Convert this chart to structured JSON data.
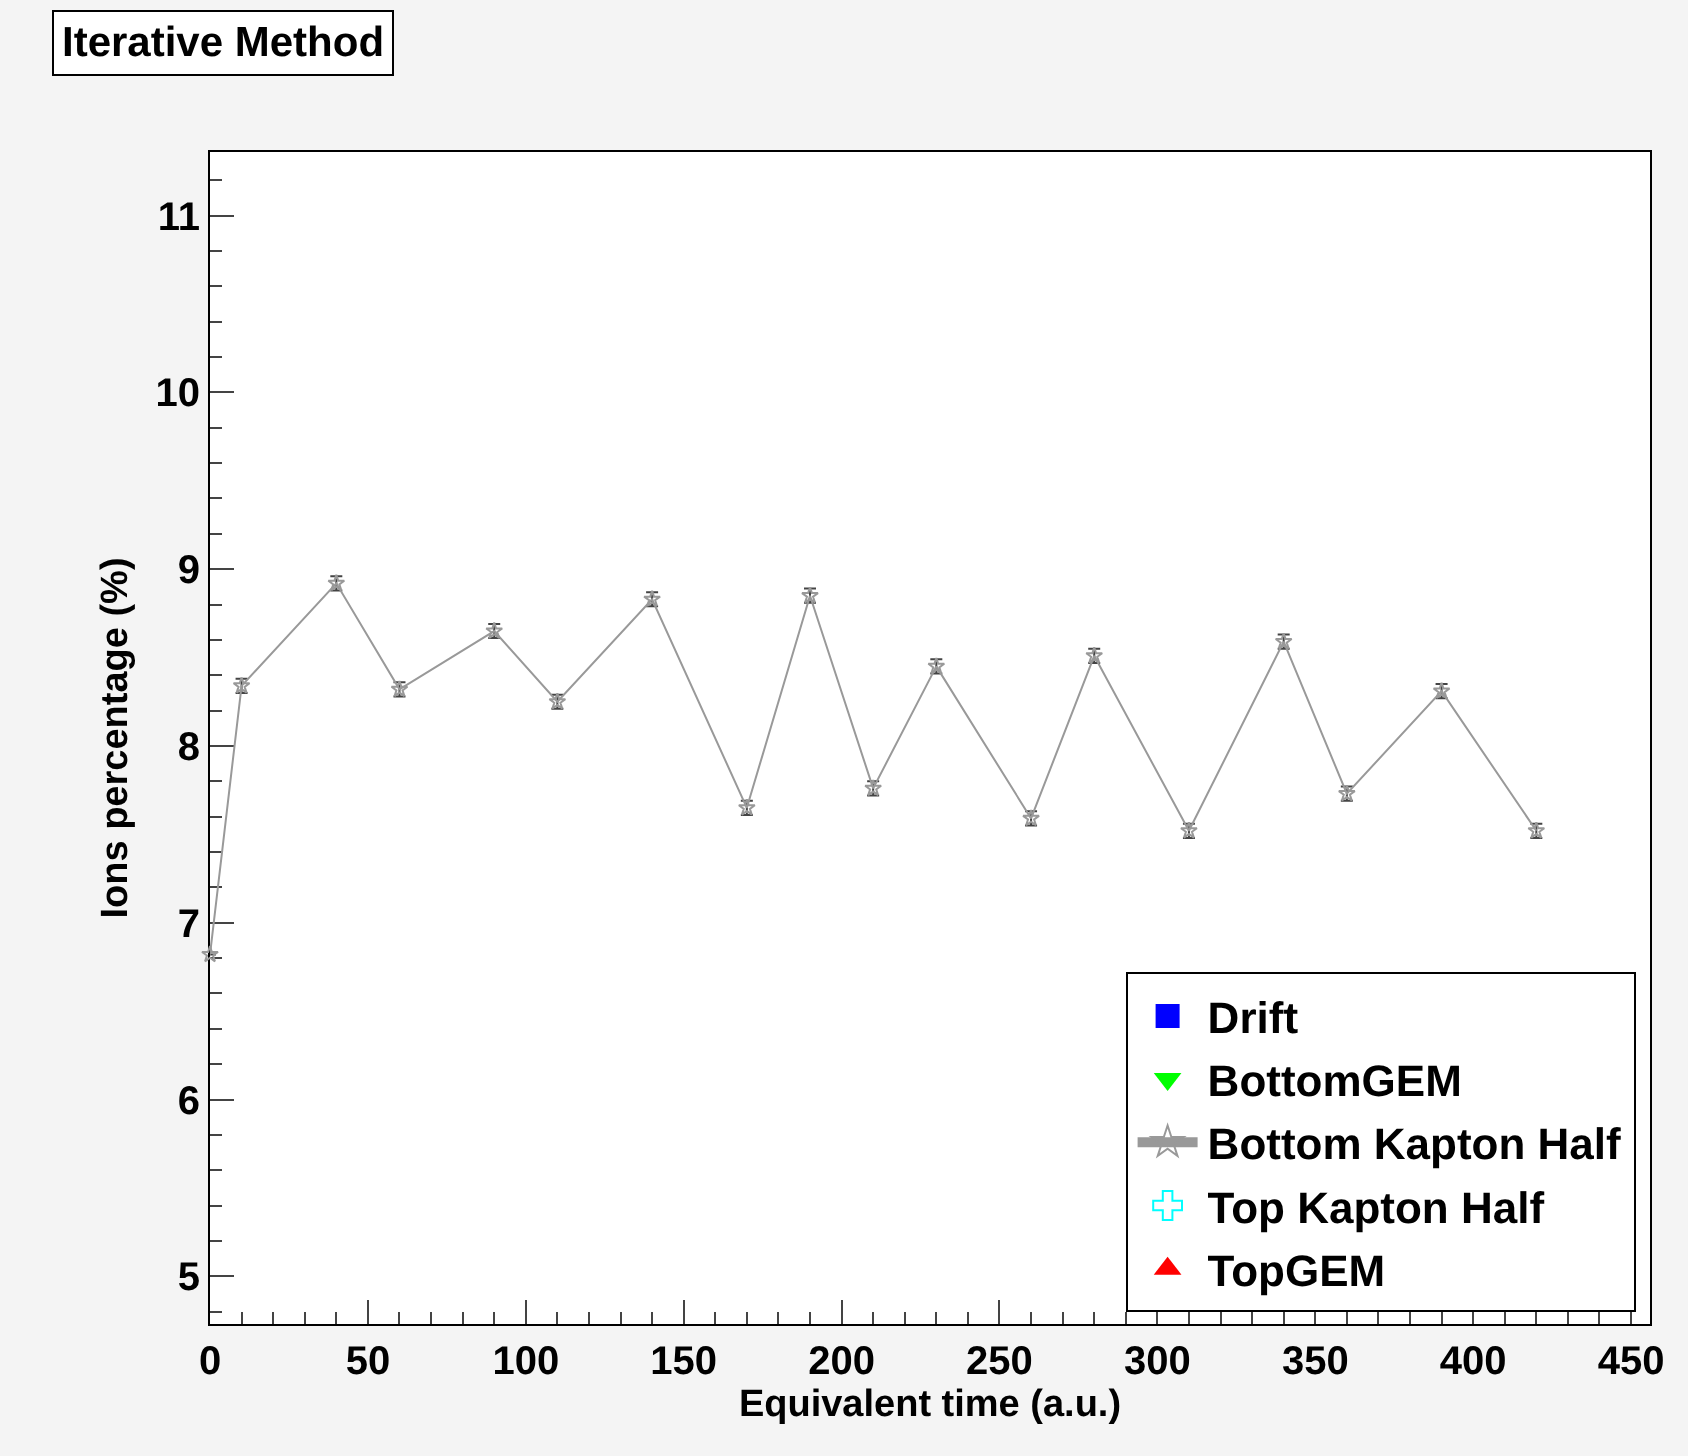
{
  "chart_data": {
    "type": "line",
    "title": "Iterative Method",
    "xlabel": "Equivalent time (a.u.)",
    "ylabel": "Ions percentage (%)",
    "xlim": [
      0,
      456
    ],
    "xticks": [
      0,
      50,
      100,
      150,
      200,
      250,
      300,
      350,
      400,
      450
    ],
    "ylim": [
      4.73,
      11.36
    ],
    "yticks": [
      5,
      6,
      7,
      8,
      9,
      10,
      11
    ],
    "legend": "bottom right",
    "series": [
      {
        "name": "Drift",
        "color": "#0000ff",
        "marker": "square"
      },
      {
        "name": "BottomGEM",
        "color": "#00ff00",
        "marker": "triangle-down"
      },
      {
        "name": "Bottom Kapton Half",
        "color": "#999999",
        "marker": "star",
        "x": [
          0,
          10,
          40,
          60,
          90,
          110,
          140,
          170,
          190,
          210,
          230,
          260,
          280,
          310,
          340,
          360,
          390,
          420
        ],
        "values": [
          6.82,
          8.34,
          8.92,
          8.32,
          8.65,
          8.25,
          8.83,
          7.65,
          8.85,
          7.76,
          8.45,
          7.59,
          8.51,
          7.52,
          8.59,
          7.73,
          8.31,
          7.52
        ],
        "errors": [
          null,
          0.04,
          0.04,
          0.04,
          0.04,
          0.04,
          0.04,
          0.04,
          0.04,
          0.04,
          0.04,
          0.04,
          0.04,
          0.04,
          0.04,
          0.04,
          0.04,
          0.04
        ]
      },
      {
        "name": "Top Kapton Half",
        "color": "#00ffff",
        "marker": "cross"
      },
      {
        "name": "TopGEM",
        "color": "#ff0000",
        "marker": "triangle"
      }
    ]
  }
}
